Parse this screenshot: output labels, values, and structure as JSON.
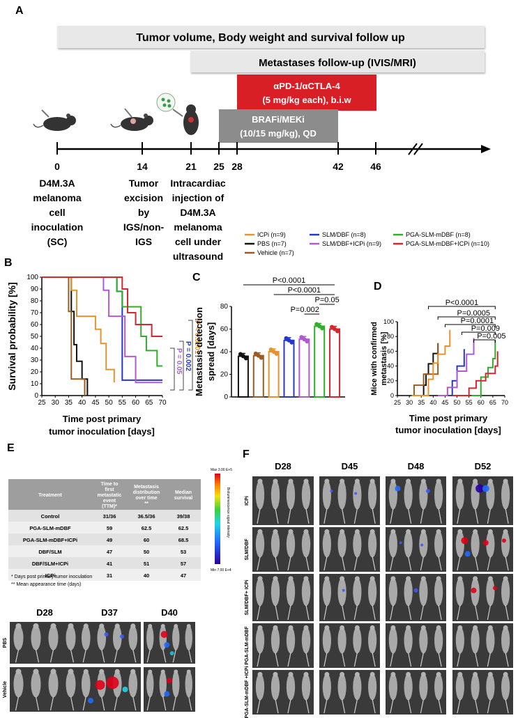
{
  "panel_letters": {
    "a": "A",
    "b": "B",
    "c": "C",
    "d": "D",
    "e": "E",
    "f": "F"
  },
  "timeline": {
    "bars": {
      "followup": "Tumor volume, Body weight and survival follow up",
      "metastases": "Metastases follow-up (IVIS/MRI)",
      "icpi_line1": "αPD-1/αCTLA-4",
      "icpi_line2": "(5 mg/kg each), b.i.w",
      "braf_line1": "BRAFi/MEKi",
      "braf_line2": "(10/15 mg/kg), QD"
    },
    "ticks": [
      "0",
      "14",
      "21",
      "25",
      "28",
      "42",
      "46"
    ],
    "events": {
      "e0": [
        "D4M.3A",
        "melanoma",
        "cell",
        "inoculation",
        "(SC)"
      ],
      "e14": [
        "Tumor",
        "excision",
        "by",
        "IGS/non-",
        "IGS"
      ],
      "e21": [
        "Intracardiac",
        "injection of",
        "D4M.3A",
        "melanoma",
        "cell under",
        "ultrasound"
      ]
    },
    "colors": {
      "grey": "#e8e8e8",
      "red": "#d81f26",
      "darkgrey": "#8c8c8c"
    }
  },
  "legend": [
    {
      "label": "ICPi (n=9)",
      "color": "#e8922e"
    },
    {
      "label": "PBS (n=7)",
      "color": "#111111"
    },
    {
      "label": "Vehicle (n=7)",
      "color": "#9c5b1f"
    },
    {
      "label": "SLM/DBF (n=8)",
      "color": "#2437c9"
    },
    {
      "label": "SLM/DBF+ICPi (n=9)",
      "color": "#b05ad0"
    },
    {
      "label": "PGA-SLM-mDBF (n=8)",
      "color": "#2fae2a"
    },
    {
      "label": "PGA-SLM-mDBF+ICPi  (n=10)",
      "color": "#d6262e"
    }
  ],
  "chart_data": [
    {
      "id": "B",
      "type": "line",
      "subtype": "step",
      "ylabel": "Survival probability [%]",
      "xlabel_line1": "Time post primary",
      "xlabel_line2": "tumor inoculation [days]",
      "xlim": [
        25,
        70
      ],
      "ylim": [
        0,
        100
      ],
      "xticks": [
        "25",
        "30",
        "35",
        "40",
        "45",
        "50",
        "55",
        "60",
        "65",
        "70"
      ],
      "yticks": [
        "0",
        "10",
        "20",
        "30",
        "40",
        "50",
        "60",
        "70",
        "80",
        "90",
        "100"
      ],
      "series": [
        {
          "name": "PBS",
          "color": "#111111",
          "x": [
            25,
            36,
            37,
            38,
            40,
            42
          ],
          "y": [
            100,
            71,
            43,
            29,
            14,
            0
          ]
        },
        {
          "name": "Vehicle",
          "color": "#9c5b1f",
          "x": [
            25,
            35,
            36,
            41
          ],
          "y": [
            100,
            71,
            14,
            0
          ]
        },
        {
          "name": "ICPi",
          "color": "#e8922e",
          "x": [
            25,
            36,
            38,
            45,
            47,
            49,
            52
          ],
          "y": [
            100,
            89,
            67,
            56,
            44,
            22,
            11
          ]
        },
        {
          "name": "SLM/DBF",
          "color": "#2437c9",
          "x": [
            25,
            47,
            53,
            55,
            70
          ],
          "y": [
            100,
            100,
            88,
            13,
            13
          ]
        },
        {
          "name": "SLM/DBF+ICPi",
          "color": "#b05ad0",
          "x": [
            25,
            48,
            50,
            56,
            60,
            70
          ],
          "y": [
            100,
            89,
            67,
            33,
            11,
            11
          ]
        },
        {
          "name": "PGA-SLM-mDBF",
          "color": "#2fae2a",
          "x": [
            25,
            53,
            55,
            62,
            64,
            68,
            70
          ],
          "y": [
            100,
            88,
            75,
            50,
            38,
            25,
            25
          ]
        },
        {
          "name": "PGA-SLM-mDBF+ICPi",
          "color": "#d6262e",
          "x": [
            25,
            55,
            57,
            60,
            66,
            70
          ],
          "y": [
            100,
            90,
            70,
            60,
            50,
            50
          ]
        }
      ],
      "annotations": [
        "P < 0.0001",
        "P = 0.002",
        "P = 0.05"
      ]
    },
    {
      "id": "C",
      "type": "bar",
      "ylabel_line1": "Metastasis detection",
      "ylabel_line2": "spread [days]",
      "ylim": [
        0,
        80
      ],
      "yticks": [
        "0",
        "20",
        "40",
        "60",
        "80"
      ],
      "categories": [
        "PBS",
        "Vehicle",
        "ICPi",
        "SLM/DBF",
        "SLM/DBF+ICPi",
        "PGA-SLM-mDBF",
        "PGA-SLM-mDBF+ICPi"
      ],
      "values": [
        36,
        36.5,
        40,
        50,
        51,
        62.5,
        60
      ],
      "colors": [
        "#111111",
        "#9c5b1f",
        "#e8922e",
        "#2437c9",
        "#b05ad0",
        "#2fae2a",
        "#d6262e"
      ],
      "annotations": [
        "P<0.0001",
        "P<0.0001",
        "P=0.05",
        "P=0.002"
      ]
    },
    {
      "id": "D",
      "type": "line",
      "subtype": "step",
      "ylabel_line1": "Mice with confirmed",
      "ylabel_line2": "metastasis [%]",
      "xlabel_line1": "Time post primary",
      "xlabel_line2": "tumor inoculation [days]",
      "xlim": [
        25,
        70
      ],
      "ylim": [
        0,
        100
      ],
      "xticks": [
        "25",
        "30",
        "35",
        "40",
        "45",
        "50",
        "55",
        "60",
        "65",
        "70"
      ],
      "yticks": [
        "0",
        "20",
        "40",
        "60",
        "80",
        "100"
      ],
      "series": [
        {
          "name": "PBS",
          "color": "#111111",
          "x": [
            31,
            36,
            37,
            38,
            40,
            42
          ],
          "y": [
            0,
            14,
            29,
            43,
            57,
            71
          ]
        },
        {
          "name": "Vehicle",
          "color": "#9c5b1f",
          "x": [
            31,
            32,
            36,
            42
          ],
          "y": [
            0,
            14,
            29,
            71
          ]
        },
        {
          "name": "ICPi",
          "color": "#e8922e",
          "x": [
            31,
            38,
            40,
            42,
            45,
            47
          ],
          "y": [
            0,
            22,
            44,
            56,
            67,
            89
          ]
        },
        {
          "name": "SLM/DBF",
          "color": "#2437c9",
          "x": [
            47,
            48,
            50,
            53
          ],
          "y": [
            0,
            20,
            40,
            63
          ]
        },
        {
          "name": "SLM/DBF+ICPi",
          "color": "#b05ad0",
          "x": [
            42,
            46,
            50,
            54,
            57
          ],
          "y": [
            0,
            11,
            33,
            56,
            78
          ]
        },
        {
          "name": "PGA-SLM-mDBF",
          "color": "#2fae2a",
          "x": [
            56,
            60,
            63,
            65,
            66
          ],
          "y": [
            0,
            25,
            38,
            50,
            75
          ]
        },
        {
          "name": "PGA-SLM-mDBF+ICPi",
          "color": "#d6262e",
          "x": [
            48,
            55,
            58,
            62,
            66,
            67
          ],
          "y": [
            0,
            10,
            20,
            30,
            40,
            60
          ]
        }
      ],
      "annotations": [
        "P<0.0001",
        "P=0.0005",
        "P=0.0001",
        "P=0.009",
        "P=0.005"
      ]
    }
  ],
  "table": {
    "headers": [
      "Treatment",
      "Time to first metastatic event (TTM)*",
      "Metastasis distribution over time **",
      "Median survival"
    ],
    "rows": [
      [
        "Control",
        "31/36",
        "36.5/36",
        "39/38"
      ],
      [
        "PGA-SLM-mDBF",
        "59",
        "62.5",
        "62.5"
      ],
      [
        "PGA-SLM-mDBF+ICPi",
        "49",
        "60",
        "68.5"
      ],
      [
        "DBF/SLM",
        "47",
        "50",
        "53"
      ],
      [
        "DBF/SLM+ICPi",
        "41",
        "51",
        "57"
      ],
      [
        "ICPi",
        "31",
        "40",
        "47"
      ]
    ],
    "footnote1": "*  Days post primary tumor inoculation",
    "footnote2": "** Mean appearance time (days)"
  },
  "colorbar": {
    "max": "Max 3.00 E+5",
    "min": "Min 7.00 E+4",
    "label": "Bioluminescence signal intensity"
  },
  "imaging_e": {
    "days": [
      "D28",
      "D37",
      "D40"
    ],
    "rows": [
      "PBS",
      "Vehicle"
    ]
  },
  "imaging_f": {
    "days": [
      "D28",
      "D45",
      "D48",
      "D52"
    ],
    "rows": [
      "ICPi",
      "SLM/DBF",
      "SLM/DBF+ ICPi",
      "PGA-SLM-mDBF",
      "PGA-SLM-mDBF +ICPi"
    ]
  }
}
